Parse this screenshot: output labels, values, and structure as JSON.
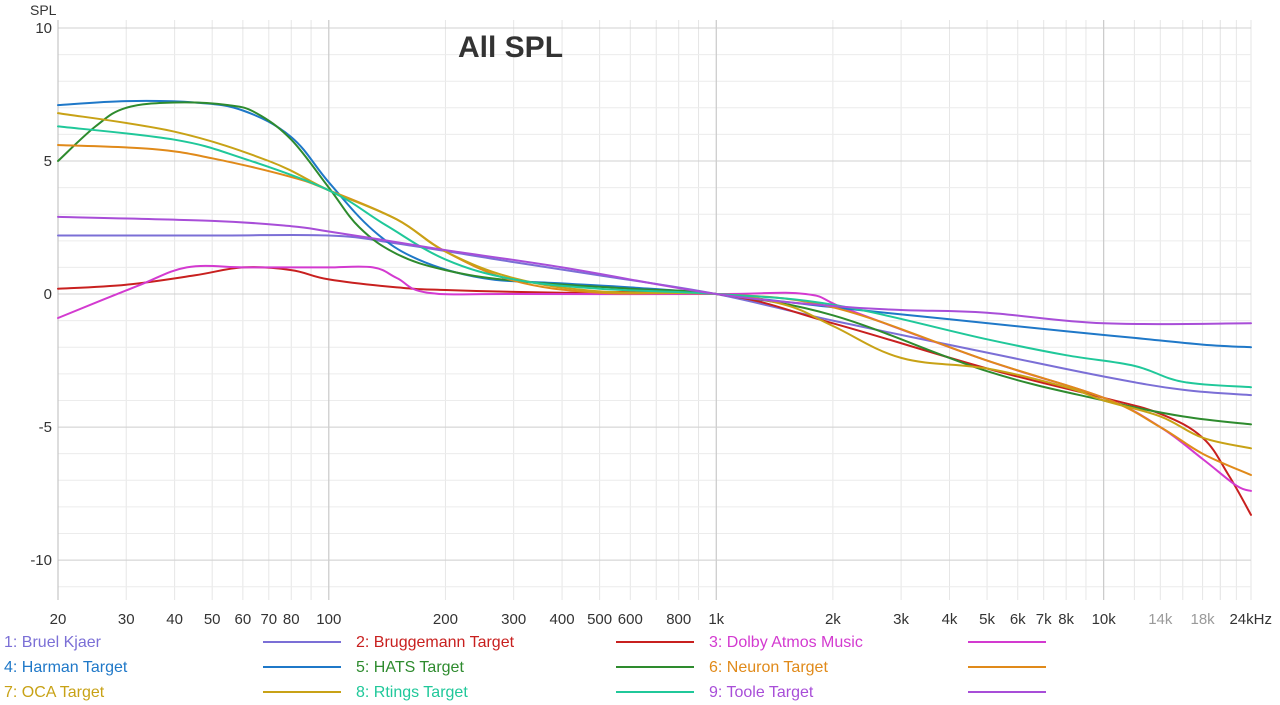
{
  "chart_data": {
    "type": "line",
    "title": "All SPL",
    "ylabel": "SPL",
    "xlabel": "",
    "xscale": "log",
    "xlim": [
      20,
      24000
    ],
    "ylim": [
      -11.5,
      10.3
    ],
    "yticks": [
      10,
      5,
      0,
      -5,
      -10
    ],
    "ytick_labels": [
      "10",
      "5",
      "0",
      "-5",
      "-10"
    ],
    "xticks": [
      {
        "value": 20,
        "label": "20",
        "dim": false
      },
      {
        "value": 30,
        "label": "30",
        "dim": false
      },
      {
        "value": 40,
        "label": "40",
        "dim": false
      },
      {
        "value": 50,
        "label": "50",
        "dim": false
      },
      {
        "value": 60,
        "label": "60",
        "dim": false
      },
      {
        "value": 70,
        "label": "70",
        "dim": false
      },
      {
        "value": 80,
        "label": "80",
        "dim": false
      },
      {
        "value": 100,
        "label": "100",
        "dim": false
      },
      {
        "value": 200,
        "label": "200",
        "dim": false
      },
      {
        "value": 300,
        "label": "300",
        "dim": false
      },
      {
        "value": 400,
        "label": "400",
        "dim": false
      },
      {
        "value": 500,
        "label": "500",
        "dim": false
      },
      {
        "value": 600,
        "label": "600",
        "dim": false
      },
      {
        "value": 800,
        "label": "800",
        "dim": false
      },
      {
        "value": 1000,
        "label": "1k",
        "dim": false
      },
      {
        "value": 2000,
        "label": "2k",
        "dim": false
      },
      {
        "value": 3000,
        "label": "3k",
        "dim": false
      },
      {
        "value": 4000,
        "label": "4k",
        "dim": false
      },
      {
        "value": 5000,
        "label": "5k",
        "dim": false
      },
      {
        "value": 6000,
        "label": "6k",
        "dim": false
      },
      {
        "value": 7000,
        "label": "7k",
        "dim": false
      },
      {
        "value": 8000,
        "label": "8k",
        "dim": false
      },
      {
        "value": 10000,
        "label": "10k",
        "dim": false
      },
      {
        "value": 14000,
        "label": "14k",
        "dim": true
      },
      {
        "value": 18000,
        "label": "18k",
        "dim": true
      },
      {
        "value": 24000,
        "label": "24kHz",
        "dim": false
      }
    ],
    "grid": true,
    "legend_position": "bottom",
    "series": [
      {
        "name": "1: Bruel Kjaer",
        "color": "#7b6fd6",
        "points": [
          [
            20,
            2.2
          ],
          [
            50,
            2.2
          ],
          [
            100,
            2.2
          ],
          [
            150,
            1.9
          ],
          [
            300,
            1.2
          ],
          [
            500,
            0.7
          ],
          [
            1000,
            0
          ],
          [
            2000,
            -1.0
          ],
          [
            5000,
            -2.2
          ],
          [
            10000,
            -3.1
          ],
          [
            16000,
            -3.6
          ],
          [
            24000,
            -3.8
          ]
        ]
      },
      {
        "name": "2: Bruggemann Target",
        "color": "#c8201f",
        "points": [
          [
            20,
            0.2
          ],
          [
            30,
            0.35
          ],
          [
            45,
            0.7
          ],
          [
            60,
            1.0
          ],
          [
            80,
            0.9
          ],
          [
            100,
            0.55
          ],
          [
            150,
            0.25
          ],
          [
            200,
            0.15
          ],
          [
            400,
            0.05
          ],
          [
            1000,
            0
          ],
          [
            2000,
            -1.1
          ],
          [
            5000,
            -2.8
          ],
          [
            10000,
            -3.9
          ],
          [
            14000,
            -4.5
          ],
          [
            18000,
            -5.4
          ],
          [
            21000,
            -6.8
          ],
          [
            24000,
            -8.3
          ]
        ]
      },
      {
        "name": "3: Dolby Atmos Music",
        "color": "#d33ad0",
        "points": [
          [
            20,
            -0.9
          ],
          [
            32,
            0.3
          ],
          [
            43,
            1.0
          ],
          [
            60,
            1.0
          ],
          [
            80,
            1.0
          ],
          [
            100,
            1.0
          ],
          [
            130,
            1.0
          ],
          [
            150,
            0.6
          ],
          [
            180,
            0.05
          ],
          [
            300,
            0.0
          ],
          [
            1000,
            0.0
          ],
          [
            1700,
            0.0
          ],
          [
            2200,
            -0.6
          ],
          [
            5000,
            -2.5
          ],
          [
            10000,
            -3.9
          ],
          [
            14000,
            -5.0
          ],
          [
            18000,
            -6.2
          ],
          [
            22000,
            -7.2
          ],
          [
            24000,
            -7.4
          ]
        ]
      },
      {
        "name": "4: Harman Target",
        "color": "#1f78c8",
        "points": [
          [
            20,
            7.1
          ],
          [
            30,
            7.25
          ],
          [
            45,
            7.2
          ],
          [
            60,
            6.9
          ],
          [
            80,
            5.9
          ],
          [
            100,
            4.2
          ],
          [
            130,
            2.4
          ],
          [
            170,
            1.3
          ],
          [
            250,
            0.6
          ],
          [
            400,
            0.4
          ],
          [
            600,
            0.25
          ],
          [
            1000,
            0
          ],
          [
            2000,
            -0.5
          ],
          [
            4000,
            -0.95
          ],
          [
            8000,
            -1.4
          ],
          [
            12000,
            -1.65
          ],
          [
            18000,
            -1.9
          ],
          [
            24000,
            -2.0
          ]
        ]
      },
      {
        "name": "5: HATS Target",
        "color": "#2e8b2e",
        "points": [
          [
            20,
            5.0
          ],
          [
            25,
            6.3
          ],
          [
            30,
            7.0
          ],
          [
            40,
            7.2
          ],
          [
            55,
            7.1
          ],
          [
            65,
            6.8
          ],
          [
            80,
            5.8
          ],
          [
            100,
            4.0
          ],
          [
            120,
            2.5
          ],
          [
            150,
            1.5
          ],
          [
            200,
            0.9
          ],
          [
            300,
            0.5
          ],
          [
            600,
            0.2
          ],
          [
            1000,
            0
          ],
          [
            2000,
            -0.8
          ],
          [
            5000,
            -2.9
          ],
          [
            10000,
            -4.0
          ],
          [
            16000,
            -4.6
          ],
          [
            24000,
            -4.9
          ]
        ]
      },
      {
        "name": "6: Neuron Target",
        "color": "#e08a1a",
        "points": [
          [
            20,
            5.6
          ],
          [
            35,
            5.45
          ],
          [
            50,
            5.1
          ],
          [
            80,
            4.4
          ],
          [
            100,
            3.9
          ],
          [
            150,
            2.8
          ],
          [
            200,
            1.6
          ],
          [
            300,
            0.5
          ],
          [
            500,
            0.05
          ],
          [
            1000,
            0
          ],
          [
            2000,
            -0.5
          ],
          [
            5000,
            -2.5
          ],
          [
            10000,
            -3.9
          ],
          [
            14000,
            -5.0
          ],
          [
            18000,
            -6.0
          ],
          [
            24000,
            -6.8
          ]
        ]
      },
      {
        "name": "7: OCA Target",
        "color": "#c8a216",
        "points": [
          [
            20,
            6.8
          ],
          [
            40,
            6.1
          ],
          [
            70,
            5.0
          ],
          [
            100,
            3.9
          ],
          [
            150,
            2.8
          ],
          [
            200,
            1.6
          ],
          [
            300,
            0.6
          ],
          [
            500,
            0.1
          ],
          [
            1000,
            0
          ],
          [
            1500,
            -0.4
          ],
          [
            2000,
            -1.2
          ],
          [
            3000,
            -2.4
          ],
          [
            5000,
            -2.8
          ],
          [
            8000,
            -3.5
          ],
          [
            10000,
            -4.0
          ],
          [
            14000,
            -4.6
          ],
          [
            18000,
            -5.4
          ],
          [
            24000,
            -5.8
          ]
        ]
      },
      {
        "name": "8: Rtings Target",
        "color": "#20c89a",
        "points": [
          [
            20,
            6.3
          ],
          [
            40,
            5.8
          ],
          [
            60,
            5.1
          ],
          [
            100,
            3.9
          ],
          [
            140,
            2.6
          ],
          [
            200,
            1.3
          ],
          [
            300,
            0.55
          ],
          [
            500,
            0.2
          ],
          [
            1000,
            0
          ],
          [
            2000,
            -0.4
          ],
          [
            5000,
            -1.7
          ],
          [
            8000,
            -2.3
          ],
          [
            12000,
            -2.7
          ],
          [
            16000,
            -3.3
          ],
          [
            24000,
            -3.5
          ]
        ]
      },
      {
        "name": "9: Toole Target",
        "color": "#a84ed8",
        "points": [
          [
            20,
            2.9
          ],
          [
            50,
            2.75
          ],
          [
            80,
            2.55
          ],
          [
            100,
            2.35
          ],
          [
            150,
            1.95
          ],
          [
            200,
            1.65
          ],
          [
            400,
            1.0
          ],
          [
            1000,
            0
          ],
          [
            2000,
            -0.45
          ],
          [
            3000,
            -0.6
          ],
          [
            5000,
            -0.7
          ],
          [
            10000,
            -1.1
          ],
          [
            24000,
            -1.1
          ]
        ]
      }
    ]
  }
}
